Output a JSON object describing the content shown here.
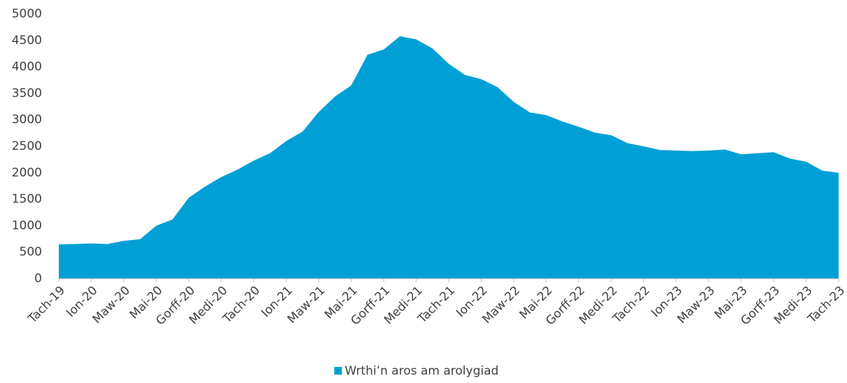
{
  "chart_data": {
    "type": "area",
    "categories": [
      "Tach-19",
      null,
      "Ion-20",
      null,
      "Maw-20",
      null,
      "Mai-20",
      null,
      "Gorff-20",
      null,
      "Medi-20",
      null,
      "Tach-20",
      null,
      "Ion-21",
      null,
      "Maw-21",
      null,
      "Mai-21",
      null,
      "Gorff-21",
      null,
      "Medi-21",
      null,
      "Tach-21",
      null,
      "Ion-22",
      null,
      "Maw-22",
      null,
      "Mai-22",
      null,
      "Gorff-22",
      null,
      "Medi-22",
      null,
      "Tach-22",
      null,
      "Ion-23",
      null,
      "Maw-23",
      null,
      "Mai-23",
      null,
      "Gorff-23",
      null,
      "Medi-23",
      null,
      "Tach-23"
    ],
    "series": [
      {
        "name": "Wrthi’n aros am arolygiad",
        "color": "#00a0d6",
        "values": [
          650,
          655,
          665,
          655,
          715,
          745,
          1000,
          1120,
          1530,
          1740,
          1920,
          2060,
          2230,
          2370,
          2600,
          2780,
          3150,
          3440,
          3650,
          4230,
          4330,
          4580,
          4520,
          4350,
          4060,
          3850,
          3770,
          3620,
          3340,
          3140,
          3090,
          2970,
          2870,
          2760,
          2710,
          2560,
          2500,
          2430,
          2420,
          2410,
          2420,
          2440,
          2350,
          2370,
          2390,
          2270,
          2210,
          2040,
          2000
        ]
      }
    ],
    "ylim": [
      0,
      5000
    ],
    "yticks": [
      0,
      500,
      1000,
      1500,
      2000,
      2500,
      3000,
      3500,
      4000,
      4500,
      5000
    ],
    "grid": false,
    "legend": "bottom"
  }
}
